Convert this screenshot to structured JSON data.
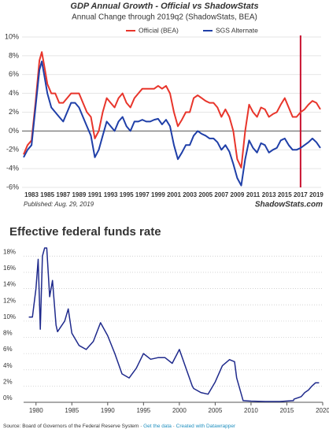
{
  "chart_data": [
    {
      "type": "line",
      "title": "GDP Annual Growth - Official vs ShadowStats",
      "subtitle": "Annual Change through 2019q2  (ShadowStats, BEA)",
      "note": "Published: Aug. 29, 2019",
      "watermark": "ShadowStats.com",
      "x": [
        1982,
        1982.5,
        1983,
        1983.5,
        1984,
        1984.3,
        1984.6,
        1985,
        1985.5,
        1986,
        1986.5,
        1987,
        1987.5,
        1988,
        1988.5,
        1989,
        1989.5,
        1990,
        1990.5,
        1991,
        1991.5,
        1992,
        1992.5,
        1993,
        1993.5,
        1994,
        1994.5,
        1995,
        1995.5,
        1996,
        1996.5,
        1997,
        1997.5,
        1998,
        1998.5,
        1999,
        1999.5,
        2000,
        2000.5,
        2001,
        2001.5,
        2002,
        2002.5,
        2003,
        2003.5,
        2004,
        2004.5,
        2005,
        2005.5,
        2006,
        2006.5,
        2007,
        2007.5,
        2008,
        2008.5,
        2009,
        2009.5,
        2010,
        2010.5,
        2011,
        2011.5,
        2012,
        2012.5,
        2013,
        2013.5,
        2014,
        2014.5,
        2015,
        2015.5,
        2016,
        2016.5,
        2017,
        2017.5,
        2018,
        2018.5,
        2019,
        2019.5
      ],
      "series": [
        {
          "name": "Official (BEA)",
          "color": "#e8352b",
          "values": [
            -2.5,
            -1.5,
            -1,
            3,
            7.5,
            8.4,
            7,
            5,
            4,
            4,
            3,
            3,
            3.5,
            4,
            4,
            4,
            3,
            2,
            1.5,
            -0.8,
            0,
            2,
            3.5,
            3,
            2.5,
            3.5,
            4,
            3,
            2.5,
            3.5,
            4,
            4.5,
            4.5,
            4.5,
            4.5,
            4.8,
            4.5,
            4.8,
            4,
            2,
            0.5,
            1.2,
            2,
            2,
            3.5,
            3.8,
            3.5,
            3.2,
            3,
            3,
            2.5,
            1.5,
            2.3,
            1.5,
            0,
            -3,
            -3.9,
            0,
            2.8,
            2,
            1.5,
            2.5,
            2.3,
            1.5,
            1.8,
            2,
            2.8,
            3.5,
            2.5,
            1.5,
            1.5,
            2,
            2.3,
            2.8,
            3.2,
            3,
            2.3
          ]
        },
        {
          "name": "SGS Alternate",
          "color": "#1f3fa8",
          "values": [
            -2.8,
            -2,
            -1.5,
            2.5,
            6.5,
            7.4,
            6,
            4,
            2.5,
            2,
            1.5,
            1,
            2,
            3,
            3,
            2.5,
            1.5,
            0.5,
            -0.5,
            -2.8,
            -2,
            -0.5,
            1,
            0.5,
            0,
            1,
            1.5,
            0.5,
            0,
            1,
            1,
            1.2,
            1,
            1,
            1.2,
            1.3,
            0.7,
            1.2,
            0.5,
            -1.5,
            -3,
            -2.3,
            -1.5,
            -1.5,
            -0.5,
            0,
            -0.3,
            -0.5,
            -0.8,
            -0.8,
            -1.2,
            -2,
            -1.5,
            -2.2,
            -3.5,
            -5,
            -5.8,
            -3,
            -1,
            -1.8,
            -2.3,
            -1.3,
            -1.5,
            -2.3,
            -2,
            -1.8,
            -1,
            -0.8,
            -1.5,
            -2,
            -2,
            -1.8,
            -1.5,
            -1.2,
            -0.8,
            -1.2,
            -1.8
          ]
        }
      ],
      "xlim": [
        1981.8,
        2019.6
      ],
      "xticks": [
        1983,
        1985,
        1987,
        1989,
        1991,
        1993,
        1995,
        1997,
        1999,
        2001,
        2003,
        2005,
        2007,
        2009,
        2011,
        2013,
        2015,
        2017,
        2019
      ],
      "ylim": [
        -6,
        10
      ],
      "yticks": [
        {
          "value": -6,
          "label": "-6%"
        },
        {
          "value": -4,
          "label": "-4%"
        },
        {
          "value": -2,
          "label": "-2%"
        },
        {
          "value": 0,
          "label": "0%"
        },
        {
          "value": 2,
          "label": "2%"
        },
        {
          "value": 4,
          "label": "4%"
        },
        {
          "value": 6,
          "label": "6%"
        },
        {
          "value": 8,
          "label": "8%"
        },
        {
          "value": 10,
          "label": "10%"
        }
      ],
      "grid": true,
      "highlight_x": 2017,
      "highlight_color": "#c8102e"
    },
    {
      "type": "line",
      "title": "Effective federal funds rate",
      "color": "#1f2a8c",
      "x": [
        1979,
        1979.5,
        1980,
        1980.3,
        1980.6,
        1980.9,
        1981.2,
        1981.5,
        1981.9,
        1982.3,
        1982.8,
        1983,
        1984,
        1984.5,
        1985,
        1986,
        1987,
        1988,
        1989,
        1990,
        1991,
        1992,
        1993,
        1994,
        1995,
        1996,
        1997,
        1998,
        1999,
        2000,
        2001,
        2001.8,
        2002,
        2003,
        2004,
        2005,
        2006,
        2007,
        2007.7,
        2008,
        2008.9,
        2010,
        2012,
        2014,
        2015.9,
        2016,
        2017,
        2017.5,
        2018,
        2018.5,
        2019,
        2019.5
      ],
      "values": [
        10.5,
        10.5,
        14,
        17.6,
        9,
        18,
        19,
        19,
        13,
        15,
        9.5,
        8.7,
        10,
        11.5,
        8.5,
        7,
        6.5,
        7.5,
        9.8,
        8.2,
        6,
        3.5,
        3,
        4.2,
        6,
        5.3,
        5.5,
        5.5,
        4.8,
        6.5,
        4,
        2,
        1.7,
        1.2,
        1,
        2.5,
        4.5,
        5.25,
        5,
        3,
        0.2,
        0.15,
        0.1,
        0.1,
        0.2,
        0.4,
        0.7,
        1.2,
        1.5,
        2,
        2.4,
        2.4
      ],
      "xlim": [
        1978.6,
        2020
      ],
      "xticks": [
        1980,
        1985,
        1990,
        1995,
        2000,
        2005,
        2010,
        2015,
        2020
      ],
      "ylim": [
        0,
        19
      ],
      "yticks": [
        {
          "value": 0,
          "label": "0%"
        },
        {
          "value": 2,
          "label": "2%"
        },
        {
          "value": 4,
          "label": "4%"
        },
        {
          "value": 6,
          "label": "6%"
        },
        {
          "value": 8,
          "label": "8%"
        },
        {
          "value": 10,
          "label": "10%"
        },
        {
          "value": 12,
          "label": "12%"
        },
        {
          "value": 14,
          "label": "14%"
        },
        {
          "value": 16,
          "label": "16%"
        },
        {
          "value": 18,
          "label": "18%"
        }
      ],
      "grid": true,
      "source": [
        "Source: Board of Governors of the Federal Reserve System · ",
        "Get the data",
        " · ",
        "Created with Datawrapper"
      ]
    }
  ]
}
